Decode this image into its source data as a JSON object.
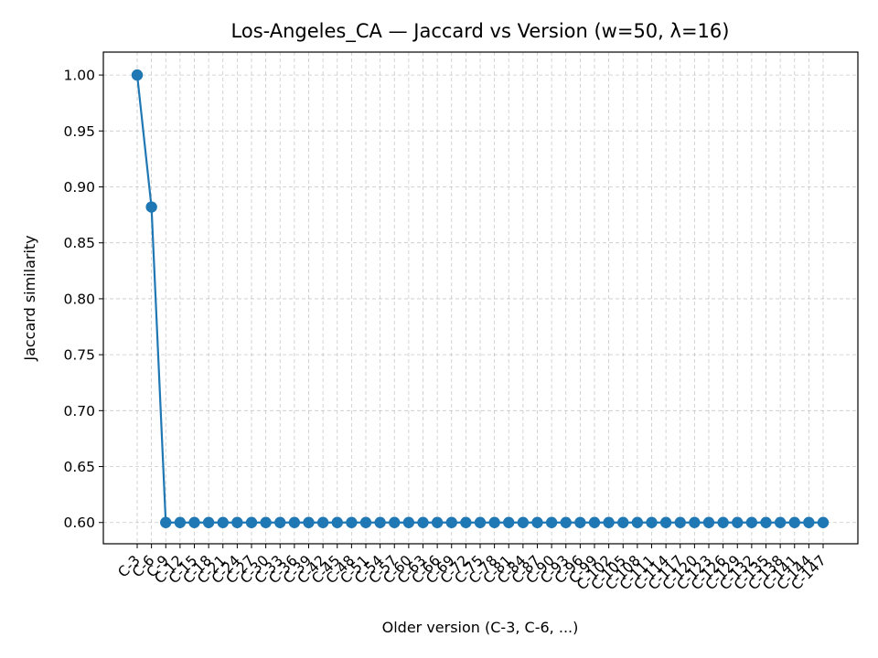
{
  "chart_data": {
    "type": "line",
    "title": "Los-Angeles_CA — Jaccard vs Version (w=50, λ=16)",
    "xlabel": "Older version (C-3, C-6, ...)",
    "ylabel": "Jaccard similarity",
    "categories": [
      "C-3",
      "C-6",
      "C-9",
      "C-12",
      "C-15",
      "C-18",
      "C-21",
      "C-24",
      "C-27",
      "C-30",
      "C-33",
      "C-36",
      "C-39",
      "C-42",
      "C-45",
      "C-48",
      "C-51",
      "C-54",
      "C-57",
      "C-60",
      "C-63",
      "C-66",
      "C-69",
      "C-72",
      "C-75",
      "C-78",
      "C-81",
      "C-84",
      "C-87",
      "C-90",
      "C-93",
      "C-96",
      "C-99",
      "C-102",
      "C-105",
      "C-108",
      "C-111",
      "C-114",
      "C-117",
      "C-120",
      "C-123",
      "C-126",
      "C-129",
      "C-132",
      "C-135",
      "C-138",
      "C-141",
      "C-144",
      "C-147"
    ],
    "series": [
      {
        "values": [
          1.0,
          0.882,
          0.6,
          0.6,
          0.6,
          0.6,
          0.6,
          0.6,
          0.6,
          0.6,
          0.6,
          0.6,
          0.6,
          0.6,
          0.6,
          0.6,
          0.6,
          0.6,
          0.6,
          0.6,
          0.6,
          0.6,
          0.6,
          0.6,
          0.6,
          0.6,
          0.6,
          0.6,
          0.6,
          0.6,
          0.6,
          0.6,
          0.6,
          0.6,
          0.6,
          0.6,
          0.6,
          0.6,
          0.6,
          0.6,
          0.6,
          0.6,
          0.6,
          0.6,
          0.6,
          0.6,
          0.6,
          0.6,
          0.6
        ],
        "color": "#1f77b4"
      }
    ],
    "yticks": [
      "0.60",
      "0.65",
      "0.70",
      "0.75",
      "0.80",
      "0.85",
      "0.90",
      "0.95",
      "1.00"
    ],
    "ylim": [
      0.581,
      1.0205
    ],
    "grid": true,
    "legend": "none"
  }
}
